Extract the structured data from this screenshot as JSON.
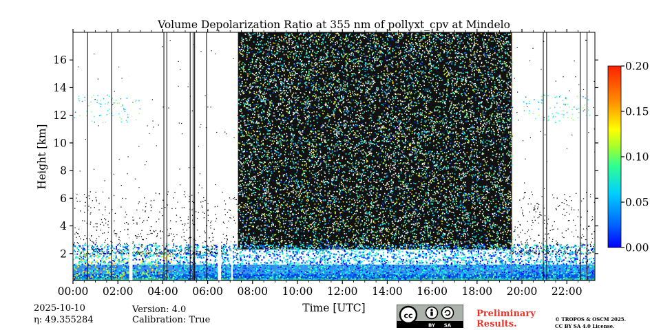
{
  "chart_data": {
    "type": "heatmap",
    "title": "Volume Depolarization Ratio at 355 nm of pollyxt_cpv at Mindelo",
    "xlabel": "Time [UTC]",
    "ylabel": "Height [km]",
    "xlim": [
      0,
      23.25
    ],
    "ylim": [
      0.05,
      18.0
    ],
    "x_ticks": [
      0,
      2,
      4,
      6,
      8,
      10,
      12,
      14,
      16,
      18,
      20,
      22
    ],
    "x_tick_labels": [
      "00:00",
      "02:00",
      "04:00",
      "06:00",
      "08:00",
      "10:00",
      "12:00",
      "14:00",
      "16:00",
      "18:00",
      "20:00",
      "22:00"
    ],
    "y_ticks": [
      2,
      4,
      6,
      8,
      10,
      12,
      14,
      16
    ],
    "y_tick_labels": [
      "2",
      "4",
      "6",
      "8",
      "10",
      "12",
      "14",
      "16"
    ],
    "colorbar": {
      "range": [
        0.0,
        0.2
      ],
      "ticks": [
        0.0,
        0.05,
        0.1,
        0.15,
        0.2
      ],
      "tick_labels": [
        "0.00",
        "0.05",
        "0.10",
        "0.15",
        "0.20"
      ],
      "colormap": "jet"
    },
    "features": {
      "daytime_noise_hours": [
        7.35,
        19.55
      ],
      "boundary_layer_top_km": 2.5,
      "cirrus_km": [
        11.5,
        13.5
      ],
      "data_gaps_hours": [
        [
          2.5,
          2.65
        ],
        [
          6.45,
          6.6
        ],
        [
          7.05,
          7.12
        ]
      ],
      "profile_lines_hours": [
        0.65,
        1.72,
        4.05,
        4.18,
        5.22,
        5.35,
        5.42,
        5.95,
        19.55,
        20.95,
        21.1,
        22.6,
        22.9
      ]
    }
  },
  "footer": {
    "date": "2025-10-10",
    "eta": "η: 49.355284",
    "version": "Version: 4.0",
    "calibration": "Calibration: True",
    "preliminary_line1": "Preliminary",
    "preliminary_line2": "Results.",
    "license_line1": "© TROPOS & OSCM 2025.",
    "license_line2": "CC BY SA 4.0 License.",
    "cc_by": "BY",
    "cc_sa": "SA",
    "cc_text": "cc"
  }
}
